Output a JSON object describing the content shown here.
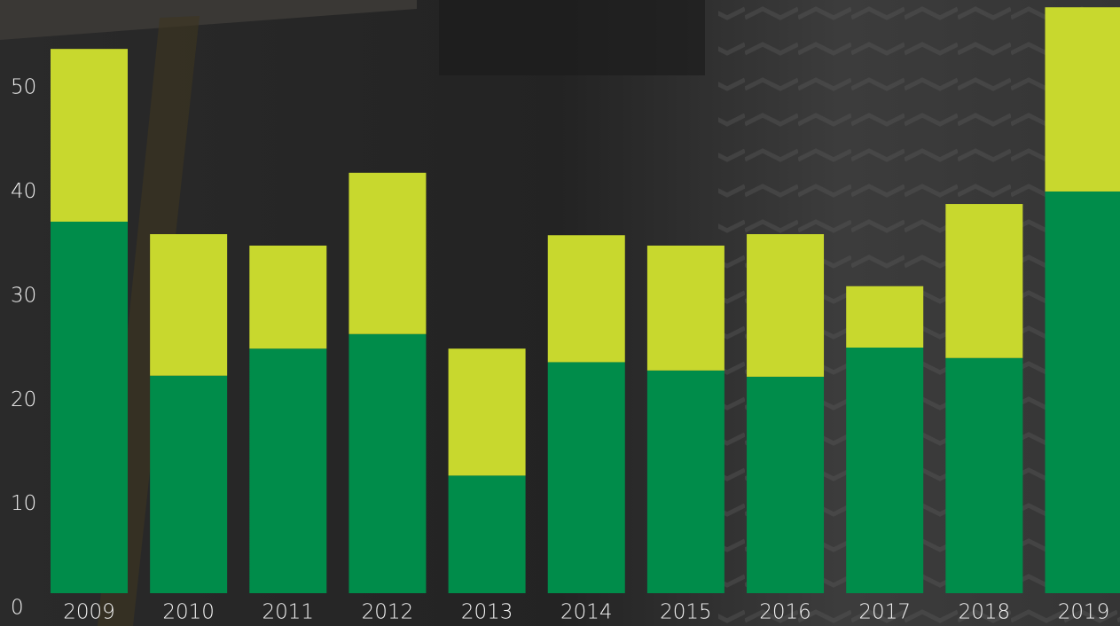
{
  "chart_data": {
    "type": "stacked_bar",
    "categories": [
      "2009",
      "2010",
      "2011",
      "2012",
      "2013",
      "2014",
      "2015",
      "2016",
      "2017",
      "2018",
      "2019"
    ],
    "series": [
      {
        "color": "#008c4a",
        "values": [
          35.7,
          20.9,
          23.5,
          24.9,
          11.3,
          22.2,
          21.4,
          20.8,
          23.6,
          22.6,
          38.6
        ]
      },
      {
        "color": "#c8d82e",
        "values": [
          16.6,
          13.6,
          9.9,
          15.5,
          12.2,
          12.2,
          12.0,
          13.7,
          5.9,
          14.8,
          17.7
        ]
      }
    ],
    "ylim": [
      0,
      57
    ],
    "yticks": [
      0,
      10,
      20,
      30,
      40,
      50
    ],
    "grid": false
  }
}
